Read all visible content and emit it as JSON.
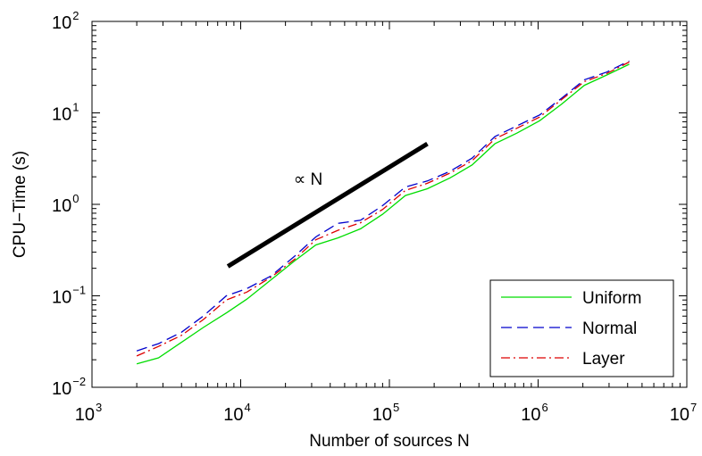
{
  "chart_data": {
    "type": "line",
    "xlabel": "Number of sources N",
    "ylabel": "CPU−Time (s)",
    "xscale": "log",
    "yscale": "log",
    "xlim": [
      1000,
      10000000
    ],
    "ylim": [
      0.01,
      100
    ],
    "x_ticks": [
      {
        "base": "10",
        "exp": "3"
      },
      {
        "base": "10",
        "exp": "4"
      },
      {
        "base": "10",
        "exp": "5"
      },
      {
        "base": "10",
        "exp": "6"
      },
      {
        "base": "10",
        "exp": "7"
      }
    ],
    "y_ticks": [
      {
        "base": "10",
        "exp": "−2"
      },
      {
        "base": "10",
        "exp": "−1"
      },
      {
        "base": "10",
        "exp": "0"
      },
      {
        "base": "10",
        "exp": "1"
      },
      {
        "base": "10",
        "exp": "2"
      }
    ],
    "grid": false,
    "legend_position": "bottom-right",
    "series": [
      {
        "name": "Uniform",
        "color": "#00dd00",
        "style": "solid",
        "x": [
          2000,
          2800,
          4000,
          5600,
          8000,
          11000,
          16000,
          23000,
          32000,
          45000,
          64000,
          90000,
          128000,
          180000,
          256000,
          360000,
          512000,
          720000,
          1024000,
          1440000,
          2048000,
          2900000,
          4096000
        ],
        "y": [
          0.018,
          0.021,
          0.031,
          0.045,
          0.065,
          0.092,
          0.15,
          0.24,
          0.36,
          0.43,
          0.54,
          0.78,
          1.25,
          1.48,
          1.95,
          2.7,
          4.6,
          6.0,
          8.2,
          12.5,
          20,
          26,
          34
        ]
      },
      {
        "name": "Normal",
        "color": "#0000cc",
        "style": "dashed",
        "x": [
          2000,
          2800,
          4000,
          5600,
          8000,
          11000,
          16000,
          23000,
          32000,
          45000,
          64000,
          90000,
          128000,
          180000,
          256000,
          360000,
          512000,
          720000,
          1024000,
          1440000,
          2048000,
          2900000,
          4096000
        ],
        "y": [
          0.025,
          0.03,
          0.04,
          0.06,
          0.1,
          0.12,
          0.165,
          0.27,
          0.44,
          0.62,
          0.67,
          0.97,
          1.55,
          1.8,
          2.3,
          3.2,
          5.5,
          7.2,
          9.5,
          14.5,
          23,
          28,
          37
        ]
      },
      {
        "name": "Layer",
        "color": "#dd0000",
        "style": "dashdot",
        "x": [
          2000,
          2800,
          4000,
          5600,
          8000,
          11000,
          16000,
          23000,
          32000,
          45000,
          64000,
          90000,
          128000,
          180000,
          256000,
          360000,
          512000,
          720000,
          1024000,
          1440000,
          2048000,
          2900000,
          4096000
        ],
        "y": [
          0.022,
          0.028,
          0.037,
          0.055,
          0.09,
          0.11,
          0.16,
          0.25,
          0.41,
          0.52,
          0.63,
          0.88,
          1.42,
          1.7,
          2.2,
          3.0,
          5.2,
          6.8,
          9.0,
          14.0,
          22,
          27,
          36
        ]
      }
    ],
    "reference_line": {
      "label": "∝ N",
      "x": [
        8200,
        180000
      ],
      "y": [
        0.21,
        4.6
      ],
      "color": "#000000"
    }
  }
}
